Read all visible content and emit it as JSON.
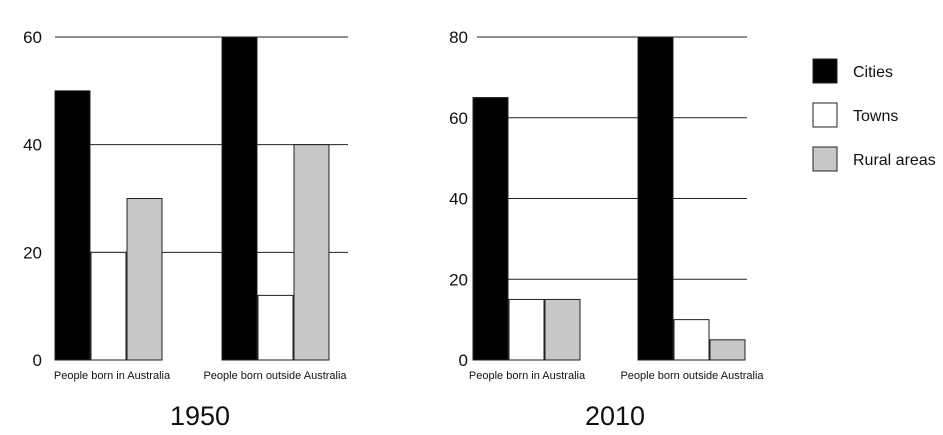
{
  "legend": [
    {
      "name": "Cities",
      "color": "#000000"
    },
    {
      "name": "Towns",
      "color": "#ffffff"
    },
    {
      "name": "Rural areas",
      "color": "#c8c8c8"
    }
  ],
  "chart_data": [
    {
      "type": "bar",
      "title": "1950",
      "categories": [
        "People born in Australia",
        "People born outside Australia"
      ],
      "series": [
        {
          "name": "Cities",
          "values": [
            50,
            60
          ]
        },
        {
          "name": "Towns",
          "values": [
            20,
            12
          ]
        },
        {
          "name": "Rural areas",
          "values": [
            30,
            40
          ]
        }
      ],
      "yticks": [
        0,
        20,
        40,
        60
      ],
      "ylim": [
        0,
        60
      ],
      "grid": true
    },
    {
      "type": "bar",
      "title": "2010",
      "categories": [
        "People born in Australia",
        "People born outside Australia"
      ],
      "series": [
        {
          "name": "Cities",
          "values": [
            65,
            80
          ]
        },
        {
          "name": "Towns",
          "values": [
            15,
            10
          ]
        },
        {
          "name": "Rural areas",
          "values": [
            15,
            5
          ]
        }
      ],
      "yticks": [
        0,
        20,
        40,
        60,
        80
      ],
      "ylim": [
        0,
        80
      ],
      "grid": true
    }
  ]
}
